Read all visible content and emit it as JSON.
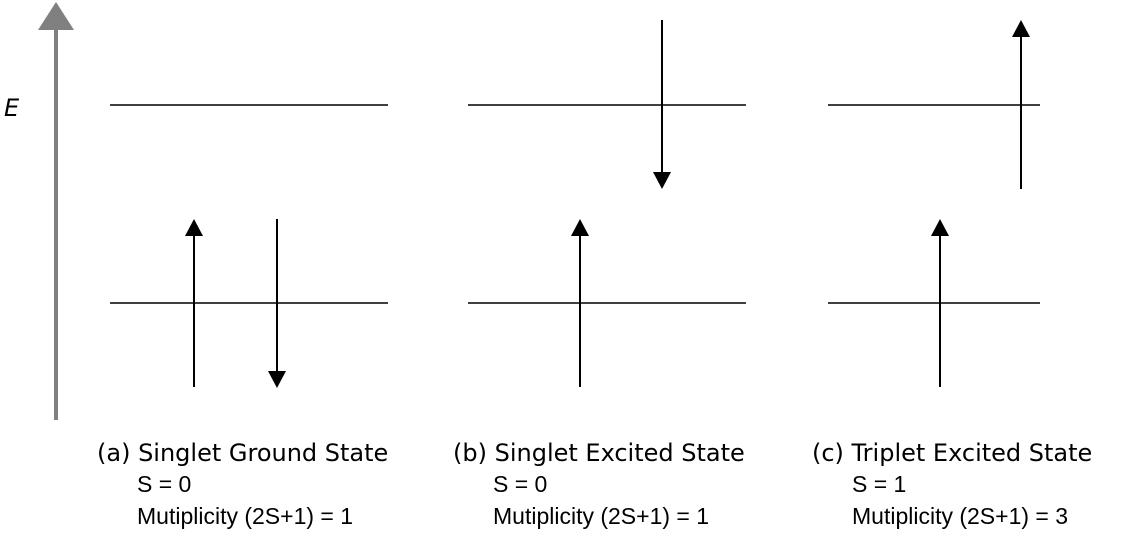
{
  "axis": {
    "label": "E"
  },
  "panels": [
    {
      "title": "(a) Singlet Ground State",
      "spin": "S = 0",
      "multiplicity": "Mutiplicity (2S+1) = 1",
      "upper_electrons": [],
      "lower_electrons": [
        "up",
        "down"
      ]
    },
    {
      "title": "(b) Singlet Excited State",
      "spin": "S = 0",
      "multiplicity": "Mutiplicity (2S+1) = 1",
      "upper_electrons": [
        "down"
      ],
      "lower_electrons": [
        "up"
      ]
    },
    {
      "title": "(c) Triplet Excited State",
      "spin": "S = 1",
      "multiplicity": "Mutiplicity (2S+1) = 3",
      "upper_electrons": [
        "up"
      ],
      "lower_electrons": [
        "up"
      ]
    }
  ]
}
